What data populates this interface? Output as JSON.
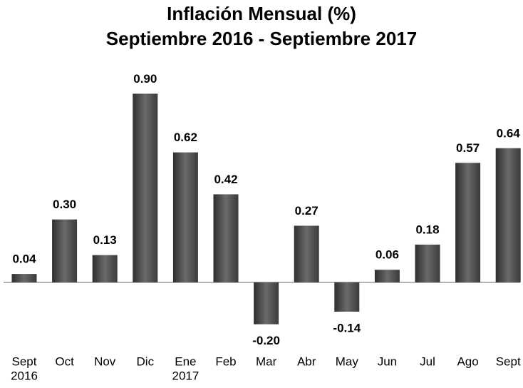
{
  "chart_data": {
    "type": "bar",
    "title": "Inflación Mensual (%)",
    "subtitle": "Septiembre 2016 - Septiembre 2017",
    "categories": [
      [
        "Sept",
        "2016"
      ],
      "Oct",
      "Nov",
      "Dic",
      [
        "Ene",
        "2017"
      ],
      "Feb",
      "Mar",
      "Abr",
      "May",
      "Jun",
      "Jul",
      "Ago",
      "Sept"
    ],
    "values": [
      0.04,
      0.3,
      0.13,
      0.9,
      0.62,
      0.42,
      -0.2,
      0.27,
      -0.14,
      0.06,
      0.18,
      0.57,
      0.64
    ],
    "value_labels": [
      "0.04",
      "0.30",
      "0.13",
      "0.90",
      "0.62",
      "0.42",
      "-0.20",
      "0.27",
      "-0.14",
      "0.06",
      "0.18",
      "0.57",
      "0.64"
    ],
    "color": "#555555",
    "ylim": [
      -0.3,
      1.0
    ]
  }
}
